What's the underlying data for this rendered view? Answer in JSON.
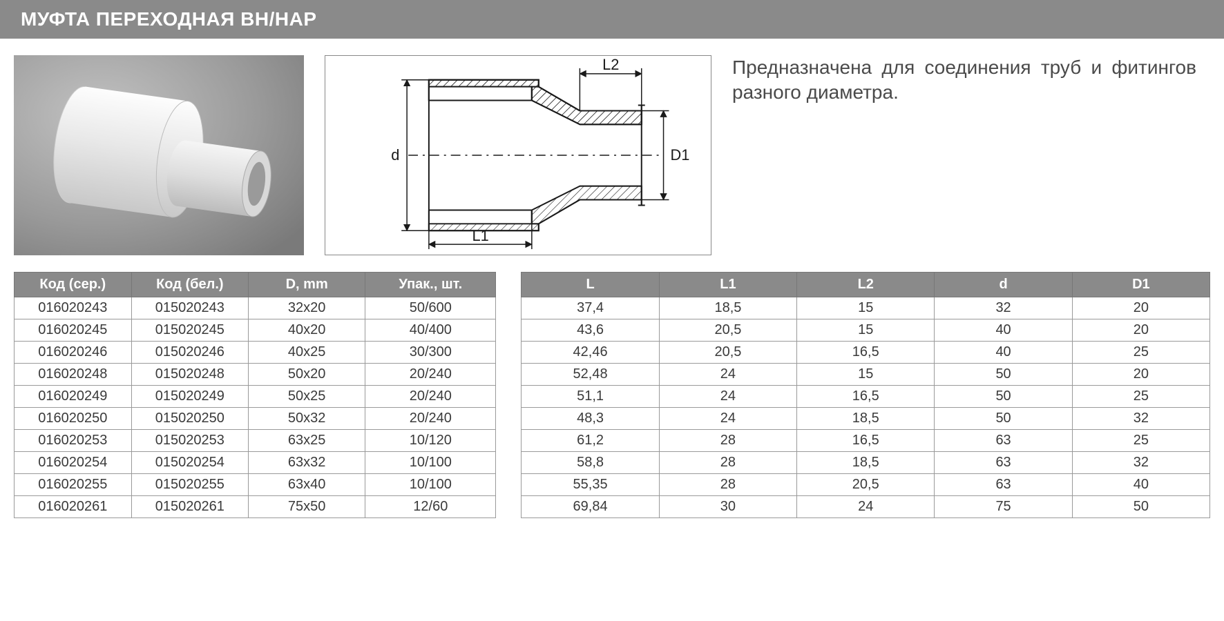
{
  "title": "МУФТА ПЕРЕХОДНАЯ ВН/НАР",
  "description": "Предназначена для соединения труб и фитингов разного диаметра.",
  "diagram": {
    "labels": {
      "d": "d",
      "D1": "D1",
      "L1": "L1",
      "L2": "L2"
    },
    "stroke": "#1a1a1a",
    "hatch": "#1a1a1a",
    "centerline_dash": "10,6,2,6"
  },
  "photo": {
    "bg_gradient": [
      "#b8b8b8",
      "#a0a0a0",
      "#888888"
    ],
    "part_color": "#e8e8e8"
  },
  "table_left": {
    "columns": [
      "Код (сер.)",
      "Код (бел.)",
      "D, mm",
      "Упак., шт."
    ],
    "rows": [
      [
        "016020243",
        "015020243",
        "32x20",
        "50/600"
      ],
      [
        "016020245",
        "015020245",
        "40x20",
        "40/400"
      ],
      [
        "016020246",
        "015020246",
        "40x25",
        "30/300"
      ],
      [
        "016020248",
        "015020248",
        "50x20",
        "20/240"
      ],
      [
        "016020249",
        "015020249",
        "50x25",
        "20/240"
      ],
      [
        "016020250",
        "015020250",
        "50x32",
        "20/240"
      ],
      [
        "016020253",
        "015020253",
        "63x25",
        "10/120"
      ],
      [
        "016020254",
        "015020254",
        "63x32",
        "10/100"
      ],
      [
        "016020255",
        "015020255",
        "63x40",
        "10/100"
      ],
      [
        "016020261",
        "015020261",
        "75x50",
        "12/60"
      ]
    ]
  },
  "table_right": {
    "columns": [
      "L",
      "L1",
      "L2",
      "d",
      "D1"
    ],
    "rows": [
      [
        "37,4",
        "18,5",
        "15",
        "32",
        "20"
      ],
      [
        "43,6",
        "20,5",
        "15",
        "40",
        "20"
      ],
      [
        "42,46",
        "20,5",
        "16,5",
        "40",
        "25"
      ],
      [
        "52,48",
        "24",
        "15",
        "50",
        "20"
      ],
      [
        "51,1",
        "24",
        "16,5",
        "50",
        "25"
      ],
      [
        "48,3",
        "24",
        "18,5",
        "50",
        "32"
      ],
      [
        "61,2",
        "28",
        "16,5",
        "63",
        "25"
      ],
      [
        "58,8",
        "28",
        "18,5",
        "63",
        "32"
      ],
      [
        "55,35",
        "28",
        "20,5",
        "63",
        "40"
      ],
      [
        "69,84",
        "30",
        "24",
        "75",
        "50"
      ]
    ]
  },
  "styles": {
    "header_bg": "#8a8a8a",
    "header_text": "#ffffff",
    "cell_border": "#999999",
    "cell_text": "#3a3a3a",
    "title_fontsize": 28,
    "body_fontsize": 20,
    "desc_fontsize": 28
  }
}
